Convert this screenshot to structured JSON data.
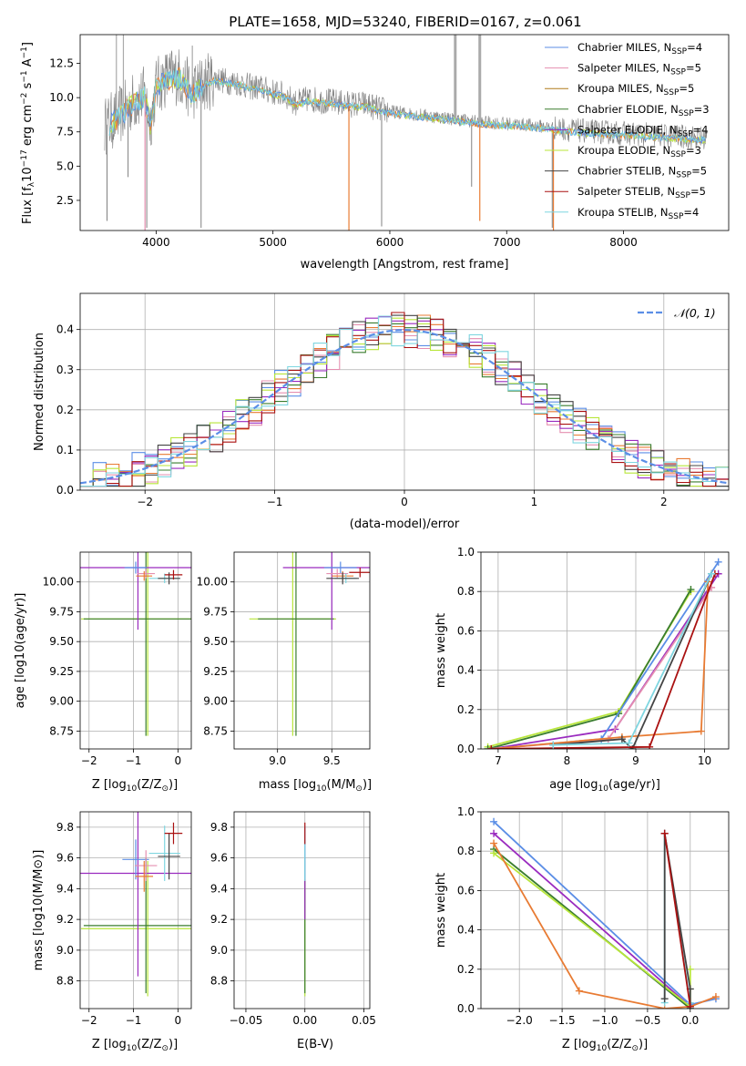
{
  "title": "PLATE=1658, MJD=53240, FIBERID=0167, z=0.061",
  "colors": {
    "chabrier_miles": "#5b8ee6",
    "salpeter_miles": "#e58fb0",
    "kroupa_miles": "#b07a1a",
    "chabrier_elodie": "#3a7d2e",
    "salpeter_elodie": "#9a2bbf",
    "kroupa_elodie": "#b8e63a",
    "chabrier_stelib": "#444444",
    "salpeter_stelib": "#aa1111",
    "kroupa_stelib": "#7fd6e0",
    "data": "#808080",
    "orange": "#e87b33",
    "normal_curve": "#5b8ee6"
  },
  "chart_data": [
    {
      "id": "spectrum",
      "type": "line",
      "xlabel": "wavelength [Angstrom, rest frame]",
      "ylabel_base": "Flux [f",
      "ylabel_sub": "λ",
      "ylabel_mid": "10",
      "ylabel_sup1": "−17",
      "ylabel_tail1": " erg cm",
      "ylabel_sup2": "−2",
      "ylabel_tail2": " s",
      "ylabel_sup3": "−1",
      "ylabel_tail3": " A",
      "ylabel_sup4": "−1",
      "ylabel_end": "]",
      "xlim": [
        3350,
        8900
      ],
      "ylim": [
        0.3,
        14.6
      ],
      "xticks": [
        4000,
        5000,
        6000,
        7000,
        8000
      ],
      "yticks": [
        2.5,
        5.0,
        7.5,
        10.0,
        12.5
      ],
      "ytick_labels": [
        "2.5",
        "5.0",
        "7.5",
        "10.0",
        "12.5"
      ],
      "legend_position": "top-right",
      "legend": [
        {
          "key": "chabrier_miles",
          "name": "Chabrier MILES, N",
          "sub": "SSP",
          "tail": "=4"
        },
        {
          "key": "salpeter_miles",
          "name": "Salpeter MILES, N",
          "sub": "SSP",
          "tail": "=5"
        },
        {
          "key": "kroupa_miles",
          "name": "Kroupa MILES, N",
          "sub": "SSP",
          "tail": "=5"
        },
        {
          "key": "chabrier_elodie",
          "name": "Chabrier ELODIE, N",
          "sub": "SSP",
          "tail": "=3"
        },
        {
          "key": "salpeter_elodie",
          "name": "Salpeter ELODIE, N",
          "sub": "SSP",
          "tail": "=4"
        },
        {
          "key": "kroupa_elodie",
          "name": "Kroupa ELODIE, N",
          "sub": "SSP",
          "tail": "=3"
        },
        {
          "key": "chabrier_stelib",
          "name": "Chabrier STELIB, N",
          "sub": "SSP",
          "tail": "=5"
        },
        {
          "key": "salpeter_stelib",
          "name": "Salpeter STELIB, N",
          "sub": "SSP",
          "tail": "=5"
        },
        {
          "key": "kroupa_stelib",
          "name": "Kroupa STELIB, N",
          "sub": "SSP",
          "tail": "=4"
        }
      ],
      "data_continuum": [
        [
          3560,
          7.9
        ],
        [
          3700,
          8.8
        ],
        [
          3800,
          9.7
        ],
        [
          3900,
          10.2
        ],
        [
          3950,
          8.2
        ],
        [
          4000,
          10.8
        ],
        [
          4100,
          11.5
        ],
        [
          4200,
          11.6
        ],
        [
          4300,
          10.4
        ],
        [
          4400,
          11.0
        ],
        [
          4500,
          11.4
        ],
        [
          4600,
          11.2
        ],
        [
          4700,
          11.1
        ],
        [
          4800,
          10.8
        ],
        [
          4900,
          10.7
        ],
        [
          5000,
          10.4
        ],
        [
          5100,
          10.2
        ],
        [
          5200,
          9.6
        ],
        [
          5300,
          9.9
        ],
        [
          5400,
          9.8
        ],
        [
          5500,
          9.7
        ],
        [
          5600,
          9.6
        ],
        [
          5700,
          9.5
        ],
        [
          5800,
          9.5
        ],
        [
          5900,
          9.2
        ],
        [
          6000,
          9.0
        ],
        [
          6200,
          8.8
        ],
        [
          6400,
          8.6
        ],
        [
          6600,
          8.4
        ],
        [
          6800,
          8.2
        ],
        [
          7000,
          8.1
        ],
        [
          7200,
          8.0
        ],
        [
          7400,
          7.8
        ],
        [
          7600,
          7.6
        ],
        [
          7800,
          7.5
        ],
        [
          8000,
          7.4
        ],
        [
          8200,
          7.3
        ],
        [
          8400,
          7.2
        ],
        [
          8600,
          7.1
        ],
        [
          8700,
          7.05
        ]
      ],
      "data_dips": [
        [
          3580,
          1.0
        ],
        [
          3760,
          4.2
        ],
        [
          3920,
          0.5
        ],
        [
          4385,
          0.5
        ],
        [
          5930,
          0.6
        ],
        [
          6700,
          3.5
        ],
        [
          7390,
          0.5
        ]
      ],
      "data_spikes": [
        [
          6560,
          14.6
        ],
        [
          6770,
          14.6
        ],
        [
          4310,
          13.8
        ],
        [
          3660,
          14.6
        ],
        [
          3720,
          14.6
        ]
      ],
      "model_dips": [
        [
          3905,
          0.3,
          "salpeter_miles"
        ],
        [
          5650,
          0.3,
          "orange"
        ],
        [
          6770,
          1.0,
          "orange"
        ],
        [
          7400,
          0.3,
          "orange"
        ]
      ]
    },
    {
      "id": "residuals",
      "type": "step-histogram",
      "xlabel": "(data-model)/error",
      "ylabel": "Normed distribution",
      "xlim": [
        -2.5,
        2.5
      ],
      "ylim": [
        0,
        0.49
      ],
      "xticks": [
        -2,
        -1,
        0,
        1,
        2
      ],
      "xtick_labels": [
        "−2",
        "−1",
        "0",
        "1",
        "2"
      ],
      "yticks": [
        0.0,
        0.1,
        0.2,
        0.3,
        0.4
      ],
      "ytick_labels": [
        "0.0",
        "0.1",
        "0.2",
        "0.3",
        "0.4"
      ],
      "bin_width": 0.1,
      "normal_label_pre": "𝒩",
      "normal_label_args": "(0, 1)",
      "legend_position": "top-right"
    },
    {
      "id": "age_vs_Z",
      "type": "errorbar",
      "xlabel_pre": "Z [log",
      "xlabel_sub": "10",
      "xlabel_post": "(Z/Z",
      "xlabel_sun": "⊙",
      "xlabel_end": ")]",
      "ylabel": "age  [log10(age/yr)]",
      "xlim": [
        -2.2,
        0.3
      ],
      "ylim": [
        8.6,
        10.25
      ],
      "xticks": [
        -2,
        -1,
        0
      ],
      "xtick_labels": [
        "−2",
        "−1",
        "0"
      ],
      "yticks": [
        8.75,
        9.0,
        9.25,
        9.5,
        9.75,
        10.0
      ],
      "ytick_labels": [
        "8.75",
        "9.00",
        "9.25",
        "9.50",
        "9.75",
        "10.00"
      ],
      "points": [
        {
          "key": "kroupa_elodie",
          "x": -0.68,
          "y": 9.69,
          "xerr": 1.5,
          "yerr": 0.98
        },
        {
          "key": "chabrier_elodie",
          "x": -0.72,
          "y": 9.69,
          "xerr": 1.4,
          "yerr": 0.98
        },
        {
          "key": "salpeter_elodie",
          "x": -0.9,
          "y": 10.12,
          "xerr": 1.35,
          "yerr": 0.52
        },
        {
          "key": "chabrier_miles",
          "x": -0.95,
          "y": 10.12,
          "xerr": 0.25,
          "yerr": 0.05
        },
        {
          "key": "salpeter_miles",
          "x": -0.72,
          "y": 10.07,
          "xerr": 0.2,
          "yerr": 0.04
        },
        {
          "key": "orange",
          "x": -0.76,
          "y": 10.05,
          "xerr": 0.18,
          "yerr": 0.04
        },
        {
          "key": "kroupa_stelib",
          "x": -0.3,
          "y": 10.03,
          "xerr": 0.35,
          "yerr": 0.04
        },
        {
          "key": "chabrier_stelib",
          "x": -0.2,
          "y": 10.03,
          "xerr": 0.25,
          "yerr": 0.05
        },
        {
          "key": "salpeter_stelib",
          "x": -0.1,
          "y": 10.06,
          "xerr": 0.2,
          "yerr": 0.04
        }
      ]
    },
    {
      "id": "age_vs_mass",
      "type": "errorbar",
      "xlabel_pre": "mass [log",
      "xlabel_sub": "10",
      "xlabel_post": "(M/M",
      "xlabel_sun": "⊙",
      "xlabel_end": ")]",
      "xlim": [
        8.6,
        9.85
      ],
      "ylim": [
        8.6,
        10.25
      ],
      "xticks": [
        9.0,
        9.5
      ],
      "xtick_labels": [
        "9.0",
        "9.5"
      ],
      "yticks": [
        8.75,
        9.0,
        9.25,
        9.5,
        9.75,
        10.0
      ],
      "ytick_labels": [
        "8.75",
        "9.00",
        "9.25",
        "9.50",
        "9.75",
        "10.00"
      ],
      "points": [
        {
          "key": "kroupa_elodie",
          "x": 9.14,
          "y": 9.69,
          "xerr": 0.4,
          "yerr": 0.98
        },
        {
          "key": "chabrier_elodie",
          "x": 9.17,
          "y": 9.69,
          "xerr": 0.35,
          "yerr": 0.98
        },
        {
          "key": "salpeter_elodie",
          "x": 9.5,
          "y": 10.12,
          "xerr": 0.45,
          "yerr": 0.52
        },
        {
          "key": "chabrier_miles",
          "x": 9.58,
          "y": 10.12,
          "xerr": 0.15,
          "yerr": 0.05
        },
        {
          "key": "salpeter_miles",
          "x": 9.55,
          "y": 10.07,
          "xerr": 0.1,
          "yerr": 0.04
        },
        {
          "key": "orange",
          "x": 9.6,
          "y": 10.05,
          "xerr": 0.1,
          "yerr": 0.04
        },
        {
          "key": "kroupa_stelib",
          "x": 9.63,
          "y": 10.03,
          "xerr": 0.1,
          "yerr": 0.04
        },
        {
          "key": "chabrier_stelib",
          "x": 9.6,
          "y": 10.03,
          "xerr": 0.15,
          "yerr": 0.05
        },
        {
          "key": "salpeter_stelib",
          "x": 9.76,
          "y": 10.08,
          "xerr": 0.1,
          "yerr": 0.04
        }
      ]
    },
    {
      "id": "weight_vs_age",
      "type": "line",
      "xlabel_pre": "age  [log",
      "xlabel_sub": "10",
      "xlabel_post": "(age/yr)]",
      "ylabel": "mass weight",
      "xlim": [
        6.75,
        10.35
      ],
      "ylim": [
        0,
        1.0
      ],
      "xticks": [
        7,
        8,
        9,
        10
      ],
      "xtick_labels": [
        "7",
        "8",
        "9",
        "10"
      ],
      "yticks": [
        0.0,
        0.2,
        0.4,
        0.6,
        0.8,
        1.0
      ],
      "ytick_labels": [
        "0.0",
        "0.2",
        "0.4",
        "0.6",
        "0.8",
        "1.0"
      ],
      "series": [
        {
          "key": "kroupa_elodie",
          "x": [
            6.85,
            8.75,
            9.8
          ],
          "y": [
            0.01,
            0.19,
            0.8
          ]
        },
        {
          "key": "chabrier_elodie",
          "x": [
            6.85,
            8.75,
            9.8
          ],
          "y": [
            0.0,
            0.18,
            0.81
          ]
        },
        {
          "key": "salpeter_elodie",
          "x": [
            6.9,
            8.7,
            10.2
          ],
          "y": [
            0.0,
            0.1,
            0.89
          ]
        },
        {
          "key": "chabrier_miles",
          "x": [
            6.9,
            8.5,
            10.2
          ],
          "y": [
            0.0,
            0.05,
            0.95
          ]
        },
        {
          "key": "salpeter_miles",
          "x": [
            6.9,
            8.6,
            10.1
          ],
          "y": [
            0.0,
            0.05,
            0.82
          ]
        },
        {
          "key": "orange",
          "x": [
            6.9,
            8.8,
            9.95,
            10.05
          ],
          "y": [
            0.0,
            0.06,
            0.09,
            0.85
          ]
        },
        {
          "key": "chabrier_stelib",
          "x": [
            7.8,
            8.8,
            8.95,
            10.1
          ],
          "y": [
            0.02,
            0.05,
            0.0,
            0.89
          ]
        },
        {
          "key": "salpeter_stelib",
          "x": [
            6.9,
            9.2,
            10.15
          ],
          "y": [
            0.0,
            0.01,
            0.89
          ]
        },
        {
          "key": "kroupa_stelib",
          "x": [
            7.8,
            8.9,
            10.1
          ],
          "y": [
            0.02,
            0.03,
            0.89
          ]
        }
      ]
    },
    {
      "id": "mass_vs_Z",
      "type": "errorbar",
      "xlabel_pre": "Z [log",
      "xlabel_sub": "10",
      "xlabel_post": "(Z/Z",
      "xlabel_sun": "⊙",
      "xlabel_end": ")]",
      "ylabel": "mass [log10(M/M⊙)]",
      "xlim": [
        -2.2,
        0.3
      ],
      "ylim": [
        8.62,
        9.9
      ],
      "xticks": [
        -2,
        -1,
        0
      ],
      "xtick_labels": [
        "−2",
        "−1",
        "0"
      ],
      "yticks": [
        8.8,
        9.0,
        9.2,
        9.4,
        9.6,
        9.8
      ],
      "ytick_labels": [
        "8.8",
        "9.0",
        "9.2",
        "9.4",
        "9.6",
        "9.8"
      ],
      "points": [
        {
          "key": "kroupa_elodie",
          "x": -0.68,
          "y": 9.14,
          "xerr": 1.5,
          "yerr": 0.44
        },
        {
          "key": "chabrier_elodie",
          "x": -0.72,
          "y": 9.16,
          "xerr": 1.4,
          "yerr": 0.44
        },
        {
          "key": "salpeter_elodie",
          "x": -0.9,
          "y": 9.5,
          "xerr": 1.35,
          "yerr": 0.67
        },
        {
          "key": "chabrier_miles",
          "x": -0.95,
          "y": 9.59,
          "xerr": 0.3,
          "yerr": 0.13
        },
        {
          "key": "salpeter_miles",
          "x": -0.72,
          "y": 9.55,
          "xerr": 0.25,
          "yerr": 0.1
        },
        {
          "key": "orange",
          "x": -0.76,
          "y": 9.48,
          "xerr": 0.2,
          "yerr": 0.1
        },
        {
          "key": "kroupa_stelib",
          "x": -0.3,
          "y": 9.63,
          "xerr": 0.35,
          "yerr": 0.18
        },
        {
          "key": "chabrier_stelib",
          "x": -0.2,
          "y": 9.61,
          "xerr": 0.25,
          "yerr": 0.15
        },
        {
          "key": "salpeter_stelib",
          "x": -0.1,
          "y": 9.76,
          "xerr": 0.2,
          "yerr": 0.07
        }
      ]
    },
    {
      "id": "mass_vs_ebv",
      "type": "errorbar",
      "xlabel": "E(B-V)",
      "xlim": [
        -0.06,
        0.055
      ],
      "ylim": [
        8.62,
        9.9
      ],
      "xticks": [
        -0.05,
        0.0,
        0.05
      ],
      "xtick_labels": [
        "−0.05",
        "0.00",
        "0.05"
      ],
      "yticks": [
        8.8,
        9.0,
        9.2,
        9.4,
        9.6,
        9.8
      ],
      "ytick_labels": [
        "8.8",
        "9.0",
        "9.2",
        "9.4",
        "9.6",
        "9.8"
      ],
      "points": [
        {
          "key": "kroupa_elodie",
          "x": 0.0,
          "y": 9.14,
          "xerr": 0.0,
          "yerr": 0.44
        },
        {
          "key": "chabrier_elodie",
          "x": 0.0,
          "y": 9.16,
          "xerr": 0.0,
          "yerr": 0.44
        },
        {
          "key": "salpeter_elodie",
          "x": 0.0,
          "y": 9.5,
          "xerr": 0.0,
          "yerr": 0.3
        },
        {
          "key": "chabrier_miles",
          "x": 0.0,
          "y": 9.59,
          "xerr": 0.0,
          "yerr": 0.13
        },
        {
          "key": "kroupa_stelib",
          "x": 0.0,
          "y": 9.63,
          "xerr": 0.0,
          "yerr": 0.18
        },
        {
          "key": "salpeter_stelib",
          "x": 0.0,
          "y": 9.76,
          "xerr": 0.0,
          "yerr": 0.07
        }
      ]
    },
    {
      "id": "weight_vs_Z",
      "type": "line",
      "xlabel_pre": "Z [log",
      "xlabel_sub": "10",
      "xlabel_post": "(Z/Z",
      "xlabel_sun": "⊙",
      "xlabel_end": ")]",
      "ylabel": "mass weight",
      "xlim": [
        -2.45,
        0.45
      ],
      "ylim": [
        0,
        1.0
      ],
      "xticks": [
        -2.0,
        -1.5,
        -1.0,
        -0.5,
        0.0
      ],
      "xtick_labels": [
        "−2.0",
        "−1.5",
        "−1.0",
        "−0.5",
        "0.0"
      ],
      "yticks": [
        0.0,
        0.2,
        0.4,
        0.6,
        0.8,
        1.0
      ],
      "ytick_labels": [
        "0.0",
        "0.2",
        "0.4",
        "0.6",
        "0.8",
        "1.0"
      ],
      "series": [
        {
          "key": "chabrier_miles",
          "x": [
            -2.3,
            0.0,
            0.3
          ],
          "y": [
            0.95,
            0.02,
            0.05
          ]
        },
        {
          "key": "salpeter_elodie",
          "x": [
            -2.3,
            0.0
          ],
          "y": [
            0.89,
            0.01
          ]
        },
        {
          "key": "chabrier_elodie",
          "x": [
            -2.3,
            0.0
          ],
          "y": [
            0.81,
            0.0
          ]
        },
        {
          "key": "kroupa_elodie",
          "x": [
            -2.3,
            0.0,
            0.0
          ],
          "y": [
            0.79,
            0.01,
            0.2
          ]
        },
        {
          "key": "orange",
          "x": [
            -2.3,
            -1.3,
            -0.3,
            0.0,
            0.3
          ],
          "y": [
            0.84,
            0.09,
            0.0,
            0.01,
            0.06
          ]
        },
        {
          "key": "kroupa_stelib",
          "x": [
            -0.3,
            -0.3,
            0.0,
            0.0
          ],
          "y": [
            0.03,
            0.89,
            0.03,
            0.0
          ]
        },
        {
          "key": "chabrier_stelib",
          "x": [
            -0.3,
            -0.3,
            0.0,
            0.0
          ],
          "y": [
            0.05,
            0.89,
            0.1,
            0.0
          ]
        },
        {
          "key": "salpeter_stelib",
          "x": [
            -0.3,
            0.0
          ],
          "y": [
            0.89,
            0.01
          ]
        }
      ]
    }
  ]
}
